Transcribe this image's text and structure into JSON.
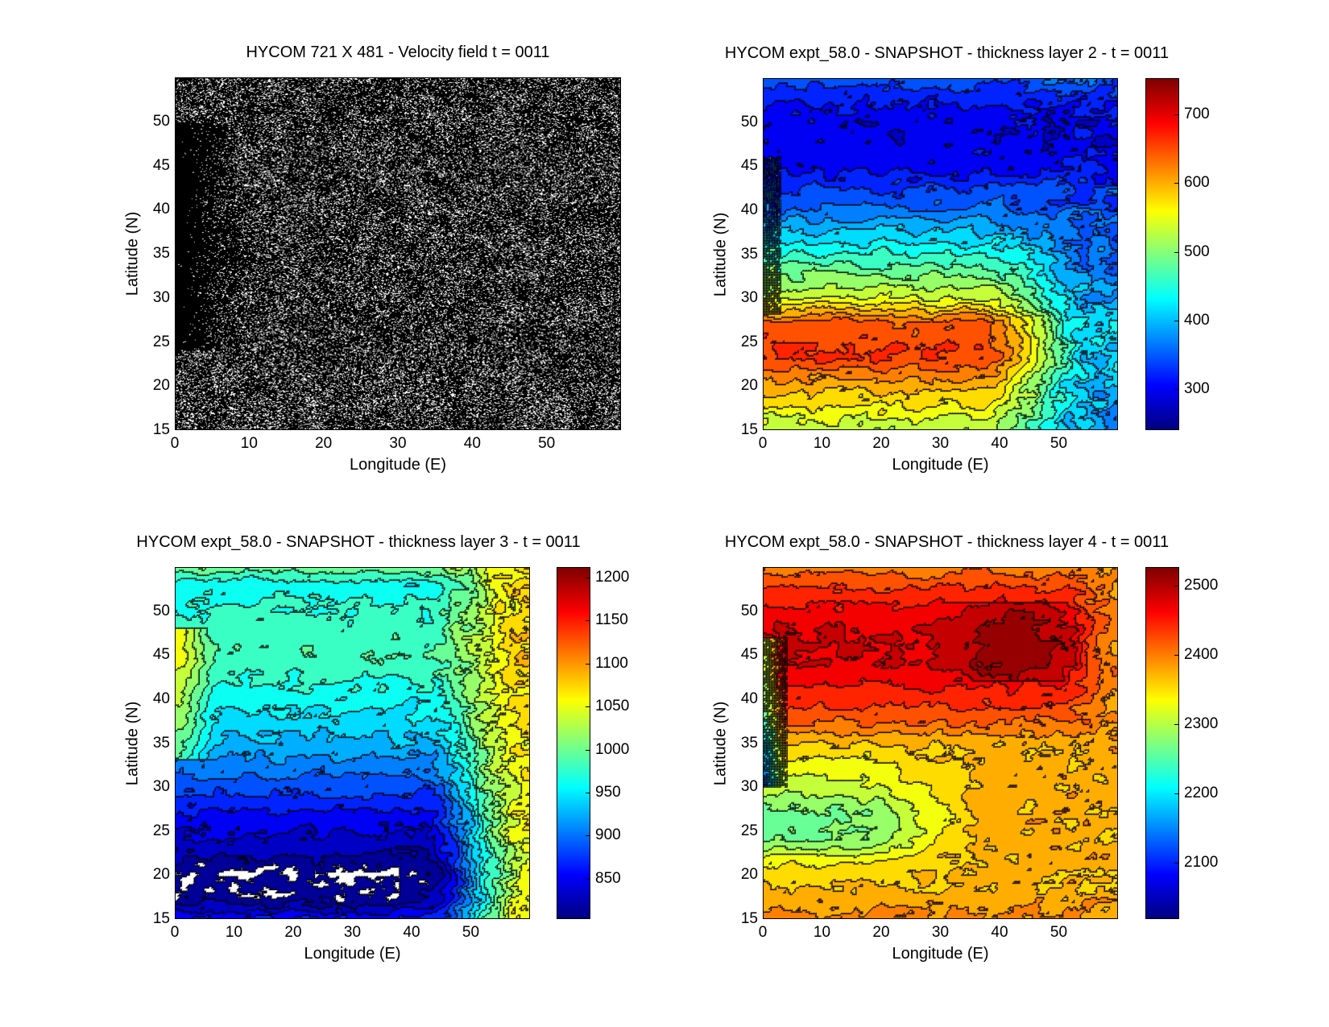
{
  "chart_data": [
    {
      "id": "velocity",
      "type": "heatmap",
      "title": "HYCOM 721 X 481 - Velocity field  t = 0011",
      "xlabel": "Longitude (E)",
      "ylabel": "Latitude (N)",
      "xlim": [
        0,
        60
      ],
      "ylim": [
        15,
        55
      ],
      "xticks": [
        0,
        10,
        20,
        30,
        40,
        50
      ],
      "yticks": [
        15,
        20,
        25,
        30,
        35,
        40,
        45,
        50
      ],
      "style": "quiver",
      "colorbar": null
    },
    {
      "id": "layer2",
      "type": "heatmap",
      "title": "HYCOM expt_58.0 - SNAPSHOT - thickness layer 2 - t = 0011",
      "xlabel": "Longitude (E)",
      "ylabel": "Latitude (N)",
      "xlim": [
        0,
        60
      ],
      "ylim": [
        15,
        55
      ],
      "xticks": [
        0,
        10,
        20,
        30,
        40,
        50
      ],
      "yticks": [
        15,
        20,
        25,
        30,
        35,
        40,
        45,
        50
      ],
      "style": "contourf",
      "colormap": "jet",
      "colorbar": {
        "range": [
          240,
          753
        ],
        "ticks": [
          300,
          400,
          500,
          600,
          700
        ]
      }
    },
    {
      "id": "layer3",
      "type": "heatmap",
      "title": "HYCOM expt_58.0 - SNAPSHOT - thickness layer 3 - t = 0011",
      "xlabel": "Longitude (E)",
      "ylabel": "Latitude (N)",
      "xlim": [
        0,
        60
      ],
      "ylim": [
        15,
        55
      ],
      "xticks": [
        0,
        10,
        20,
        30,
        40,
        50
      ],
      "yticks": [
        15,
        20,
        25,
        30,
        35,
        40,
        45,
        50
      ],
      "style": "contourf",
      "colormap": "jet",
      "colorbar": {
        "range": [
          803,
          1212
        ],
        "ticks": [
          850,
          900,
          950,
          1000,
          1050,
          1100,
          1150,
          1200
        ]
      }
    },
    {
      "id": "layer4",
      "type": "heatmap",
      "title": "HYCOM expt_58.0 - SNAPSHOT - thickness layer 4 - t = 0011",
      "xlabel": "Longitude (E)",
      "ylabel": "Latitude (N)",
      "xlim": [
        0,
        60
      ],
      "ylim": [
        15,
        55
      ],
      "xticks": [
        0,
        10,
        20,
        30,
        40,
        50
      ],
      "yticks": [
        15,
        20,
        25,
        30,
        35,
        40,
        45,
        50
      ],
      "style": "contourf",
      "colormap": "jet",
      "colorbar": {
        "range": [
          2019,
          2527
        ],
        "ticks": [
          2100,
          2200,
          2300,
          2400,
          2500
        ]
      }
    }
  ]
}
